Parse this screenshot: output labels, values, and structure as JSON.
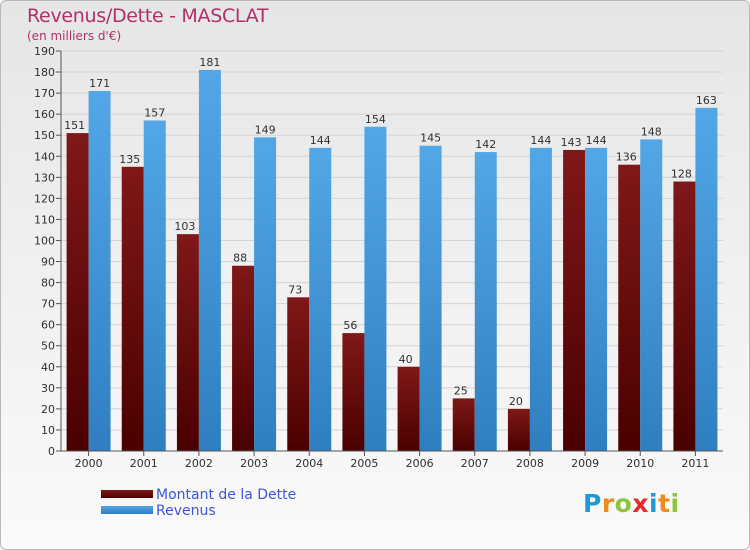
{
  "title": "Revenus/Dette - MASCLAT",
  "subtitle": "(en milliers d'€)",
  "brand": {
    "text": "Proxiti",
    "letters": [
      {
        "ch": "P",
        "color": "#1f9ad6"
      },
      {
        "ch": "r",
        "color": "#f08a1c"
      },
      {
        "ch": "o",
        "color": "#8cc63f"
      },
      {
        "ch": "x",
        "color": "#e8272b"
      },
      {
        "ch": "i",
        "color": "#1f9ad6"
      },
      {
        "ch": "t",
        "color": "#f08a1c"
      },
      {
        "ch": "i",
        "color": "#8cc63f"
      }
    ]
  },
  "colors": {
    "dette": "#801818",
    "dette_dark": "#4a0000",
    "revenus": "#53a7e6",
    "revenus_dark": "#2f7fc0",
    "grid": "#d4d4d4",
    "axis_text": "#303030"
  },
  "chart_data": {
    "type": "bar",
    "title": "Revenus/Dette - MASCLAT",
    "subtitle": "(en milliers d'€)",
    "categories": [
      "2000",
      "2001",
      "2002",
      "2003",
      "2004",
      "2005",
      "2006",
      "2007",
      "2008",
      "2009",
      "2010",
      "2011"
    ],
    "series": [
      {
        "name": "Montant de la Dette",
        "values": [
          151,
          135,
          103,
          88,
          73,
          56,
          40,
          25,
          20,
          143,
          136,
          128
        ]
      },
      {
        "name": "Revenus",
        "values": [
          171,
          157,
          181,
          149,
          144,
          154,
          145,
          142,
          144,
          144,
          148,
          163
        ]
      }
    ],
    "ylim": [
      0,
      190
    ],
    "ytick_step": 10,
    "grid": true,
    "legend": "bottom-left"
  }
}
